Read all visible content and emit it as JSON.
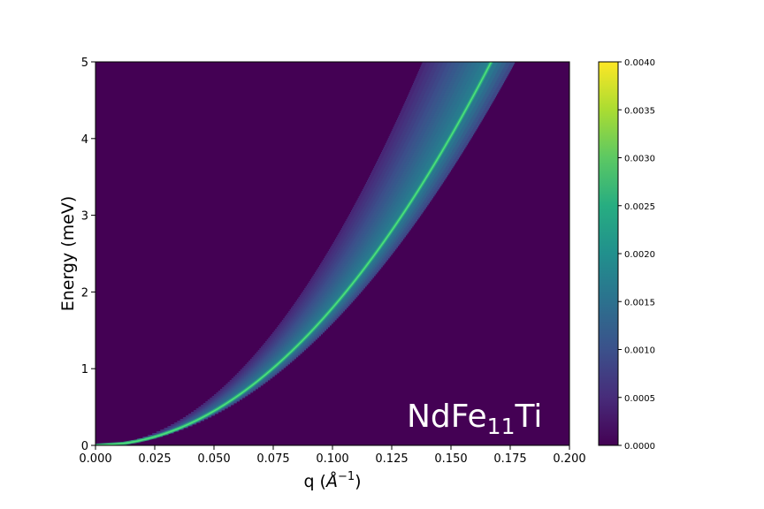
{
  "chart_data": {
    "type": "heatmap",
    "title": "",
    "xlabel_main": "q (",
    "xlabel_unit": "Å",
    "xlabel_exp": "−1",
    "xlabel_close": ")",
    "ylabel": "Energy (meV)",
    "xlim": [
      0.0,
      0.2
    ],
    "ylim": [
      0,
      5
    ],
    "x_ticks": [
      "0.000",
      "0.025",
      "0.050",
      "0.075",
      "0.100",
      "0.125",
      "0.150",
      "0.175",
      "0.200"
    ],
    "y_ticks": [
      "0",
      "1",
      "2",
      "3",
      "4",
      "5"
    ],
    "colorbar": {
      "range": [
        0.0,
        0.004
      ],
      "ticks": [
        "0.0000",
        "0.0005",
        "0.0010",
        "0.0015",
        "0.0020",
        "0.0025",
        "0.0030",
        "0.0035",
        "0.0040"
      ],
      "colormap": "viridis"
    },
    "annotation": {
      "base": "NdFe",
      "sub": "11",
      "tail": "Ti",
      "position": "bottom-right"
    },
    "dispersion": {
      "form": "E = D q^2",
      "q_at_E5": 0.167,
      "band_lower_q_at_E5": 0.138,
      "band_upper_q_at_E5": 0.177
    },
    "colors": {
      "background_cell": "#440154",
      "ridge": "#4ce07a",
      "axis": "#000000"
    }
  }
}
